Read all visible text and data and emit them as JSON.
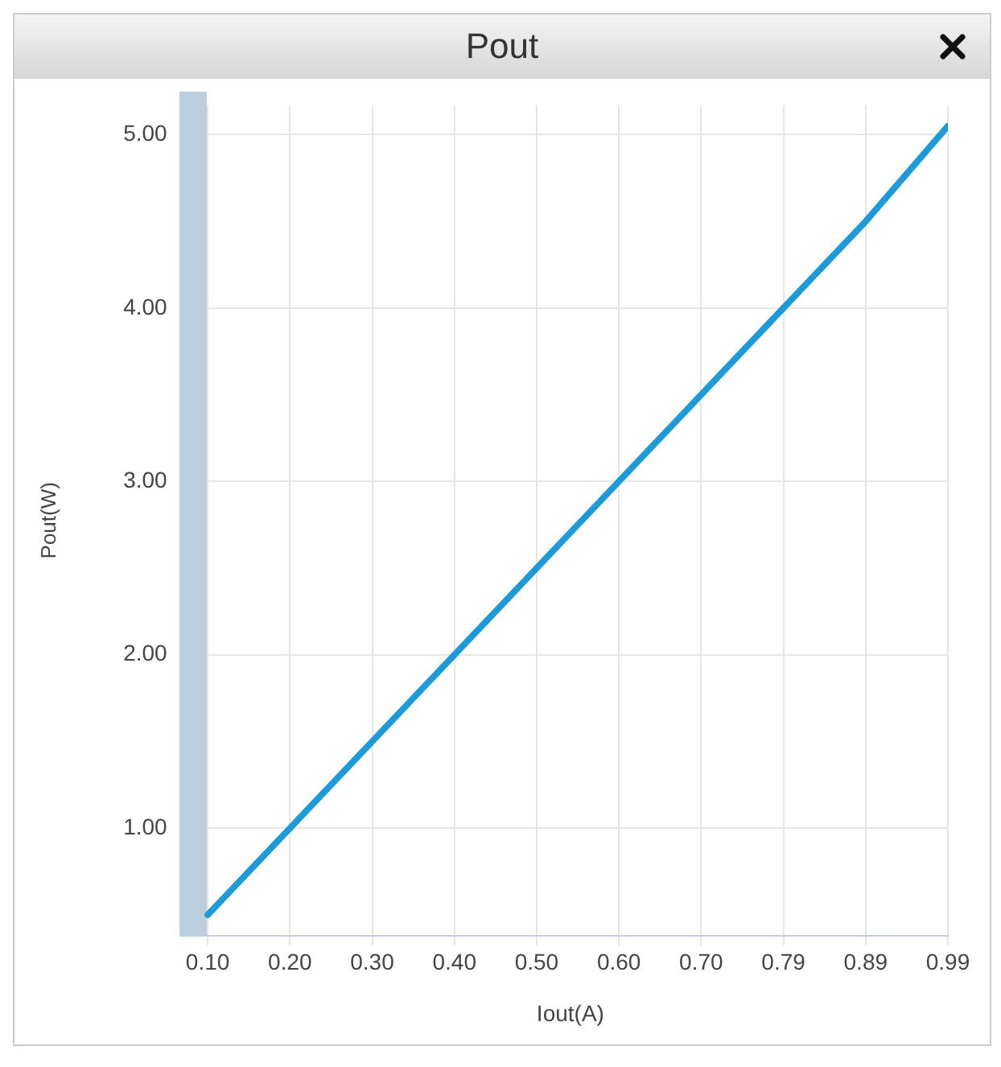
{
  "chart_data": {
    "type": "line",
    "title": "Pout",
    "xlabel": "Iout(A)",
    "ylabel": "Pout(W)",
    "categories": [
      "0.10",
      "0.20",
      "0.30",
      "0.40",
      "0.50",
      "0.60",
      "0.70",
      "0.79",
      "0.89",
      "0.99"
    ],
    "series": [
      {
        "color": "#1f9ad6",
        "values": [
          0.5,
          1.0,
          1.5,
          2.0,
          2.5,
          3.0,
          3.5,
          4.0,
          4.5,
          5.05
        ]
      }
    ],
    "ylim": [
      0.38,
      5.17
    ],
    "yticks": [
      {
        "value": 1,
        "label": "1.00"
      },
      {
        "value": 2,
        "label": "2.00"
      },
      {
        "value": 3,
        "label": "3.00"
      },
      {
        "value": 4,
        "label": "4.00"
      },
      {
        "value": 5,
        "label": "5.00"
      }
    ],
    "grid": true,
    "legend": false,
    "marker": "none",
    "line_style": "solid"
  }
}
